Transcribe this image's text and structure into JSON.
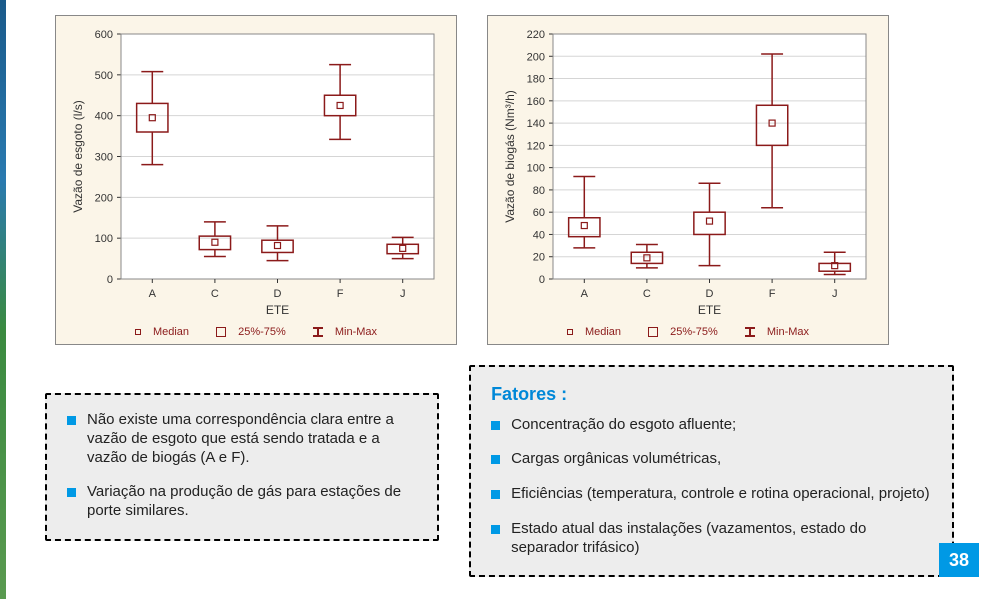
{
  "page_number": "38",
  "chart_left": {
    "type": "boxplot",
    "ylabel": "Vazão de esgoto (l/s)",
    "xlabel": "ETE",
    "categories": [
      "A",
      "C",
      "D",
      "F",
      "J"
    ],
    "ylim": [
      0,
      600
    ],
    "ytick_step": 100,
    "yticks": [
      0,
      100,
      200,
      300,
      400,
      500,
      600
    ],
    "background": "#fbf5e8",
    "plot_bg": "#ffffff",
    "grid_color": "#d5d5d5",
    "line_color": "#8b1a1a",
    "label_fontsize": 12,
    "tick_fontsize": 11,
    "data": [
      {
        "cat": "A",
        "median": 395,
        "q25": 360,
        "q75": 430,
        "min": 280,
        "max": 508
      },
      {
        "cat": "C",
        "median": 90,
        "q25": 72,
        "q75": 105,
        "min": 55,
        "max": 140
      },
      {
        "cat": "D",
        "median": 82,
        "q25": 65,
        "q75": 95,
        "min": 45,
        "max": 130
      },
      {
        "cat": "F",
        "median": 425,
        "q25": 400,
        "q75": 450,
        "min": 342,
        "max": 525
      },
      {
        "cat": "J",
        "median": 75,
        "q25": 62,
        "q75": 85,
        "min": 50,
        "max": 102
      }
    ],
    "legend": {
      "median": "Median",
      "box": "25%-75%",
      "whisk": "Min-Max"
    }
  },
  "chart_right": {
    "type": "boxplot",
    "ylabel": "Vazão de biogás (Nm³/h)",
    "xlabel": "ETE",
    "categories": [
      "A",
      "C",
      "D",
      "F",
      "J"
    ],
    "ylim": [
      0,
      220
    ],
    "ytick_step": 20,
    "yticks": [
      0,
      20,
      40,
      60,
      80,
      100,
      120,
      140,
      160,
      180,
      200,
      220
    ],
    "background": "#fbf5e8",
    "plot_bg": "#ffffff",
    "grid_color": "#d5d5d5",
    "line_color": "#8b1a1a",
    "label_fontsize": 12,
    "tick_fontsize": 11,
    "data": [
      {
        "cat": "A",
        "median": 48,
        "q25": 38,
        "q75": 55,
        "min": 28,
        "max": 92
      },
      {
        "cat": "C",
        "median": 19,
        "q25": 14,
        "q75": 24,
        "min": 10,
        "max": 31
      },
      {
        "cat": "D",
        "median": 52,
        "q25": 40,
        "q75": 60,
        "min": 12,
        "max": 86
      },
      {
        "cat": "F",
        "median": 140,
        "q25": 120,
        "q75": 156,
        "min": 64,
        "max": 202
      },
      {
        "cat": "J",
        "median": 12,
        "q25": 7,
        "q75": 14,
        "min": 4,
        "max": 24
      }
    ],
    "legend": {
      "median": "Median",
      "box": "25%-75%",
      "whisk": "Min-Max"
    }
  },
  "notes_left": [
    "Não existe uma correspondência clara entre a vazão de esgoto que está sendo tratada e a vazão de biogás (A e F).",
    "Variação na produção de gás para estações de porte similares."
  ],
  "notes_right_title": "Fatores :",
  "notes_right": [
    "Concentração do esgoto afluente;",
    "Cargas orgânicas volumétricas,",
    "Eficiências (temperatura, controle e rotina operacional, projeto)",
    "Estado atual das instalações (vazamentos, estado do separador trifásico)"
  ]
}
